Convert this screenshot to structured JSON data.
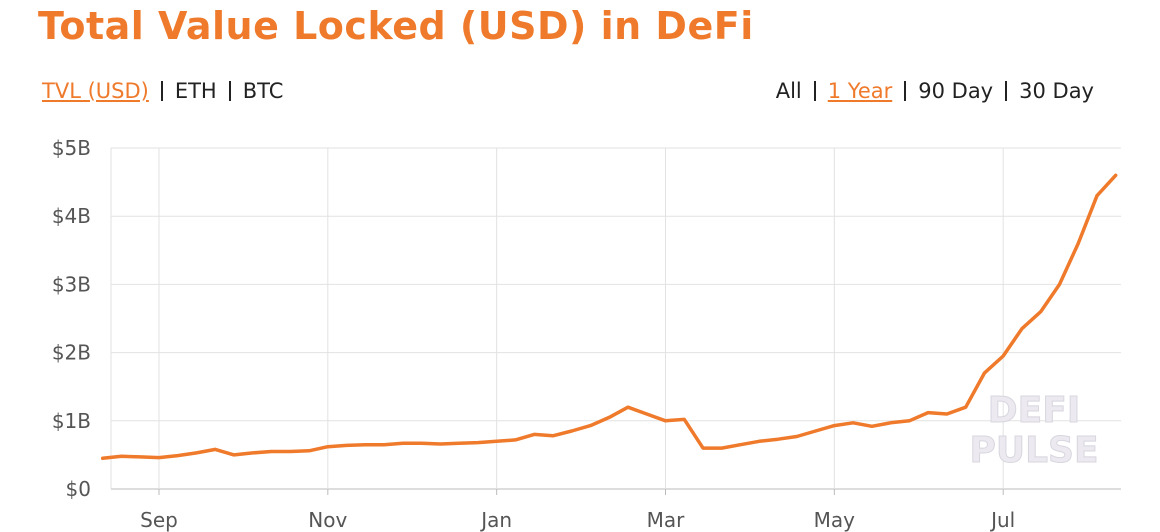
{
  "chart_data": {
    "type": "line",
    "title": "Total Value Locked (USD) in DeFi",
    "categories": [
      null,
      null,
      null,
      "Sep",
      null,
      null,
      null,
      null,
      null,
      null,
      null,
      null,
      "Nov",
      null,
      null,
      null,
      null,
      null,
      null,
      null,
      null,
      "Jan",
      null,
      null,
      null,
      null,
      null,
      null,
      null,
      null,
      "Mar",
      null,
      null,
      null,
      null,
      null,
      null,
      null,
      null,
      "May",
      null,
      null,
      null,
      null,
      null,
      null,
      null,
      null,
      "Jul",
      null,
      null,
      null,
      null,
      null,
      null
    ],
    "values": [
      0.45,
      0.48,
      0.47,
      0.46,
      0.49,
      0.53,
      0.58,
      0.5,
      0.53,
      0.55,
      0.55,
      0.56,
      0.62,
      0.64,
      0.65,
      0.65,
      0.67,
      0.67,
      0.66,
      0.67,
      0.68,
      0.7,
      0.72,
      0.8,
      0.78,
      0.85,
      0.93,
      1.05,
      1.2,
      1.1,
      1.0,
      1.02,
      0.6,
      0.6,
      0.65,
      0.7,
      0.73,
      0.77,
      0.85,
      0.93,
      0.97,
      0.92,
      0.97,
      1.0,
      1.12,
      1.1,
      1.2,
      1.7,
      1.95,
      2.35,
      2.6,
      3.0,
      3.6,
      4.3,
      4.6
    ],
    "color": "#ef7a2b",
    "ylim": [
      0,
      5
    ],
    "yticks": [
      {
        "value": 0,
        "label": "$0"
      },
      {
        "value": 1,
        "label": "$1B"
      },
      {
        "value": 2,
        "label": "$2B"
      },
      {
        "value": 3,
        "label": "$3B"
      },
      {
        "value": 4,
        "label": "$4B"
      },
      {
        "value": 5,
        "label": "$5B"
      }
    ],
    "grid": true
  },
  "unit_tabs": {
    "items": [
      "TVL (USD)",
      "ETH",
      "BTC"
    ],
    "active": 0
  },
  "range_tabs": {
    "items": [
      "All",
      "1 Year",
      "90 Day",
      "30 Day"
    ],
    "active": 1
  },
  "watermark": [
    "DEFI",
    "PULSE"
  ]
}
